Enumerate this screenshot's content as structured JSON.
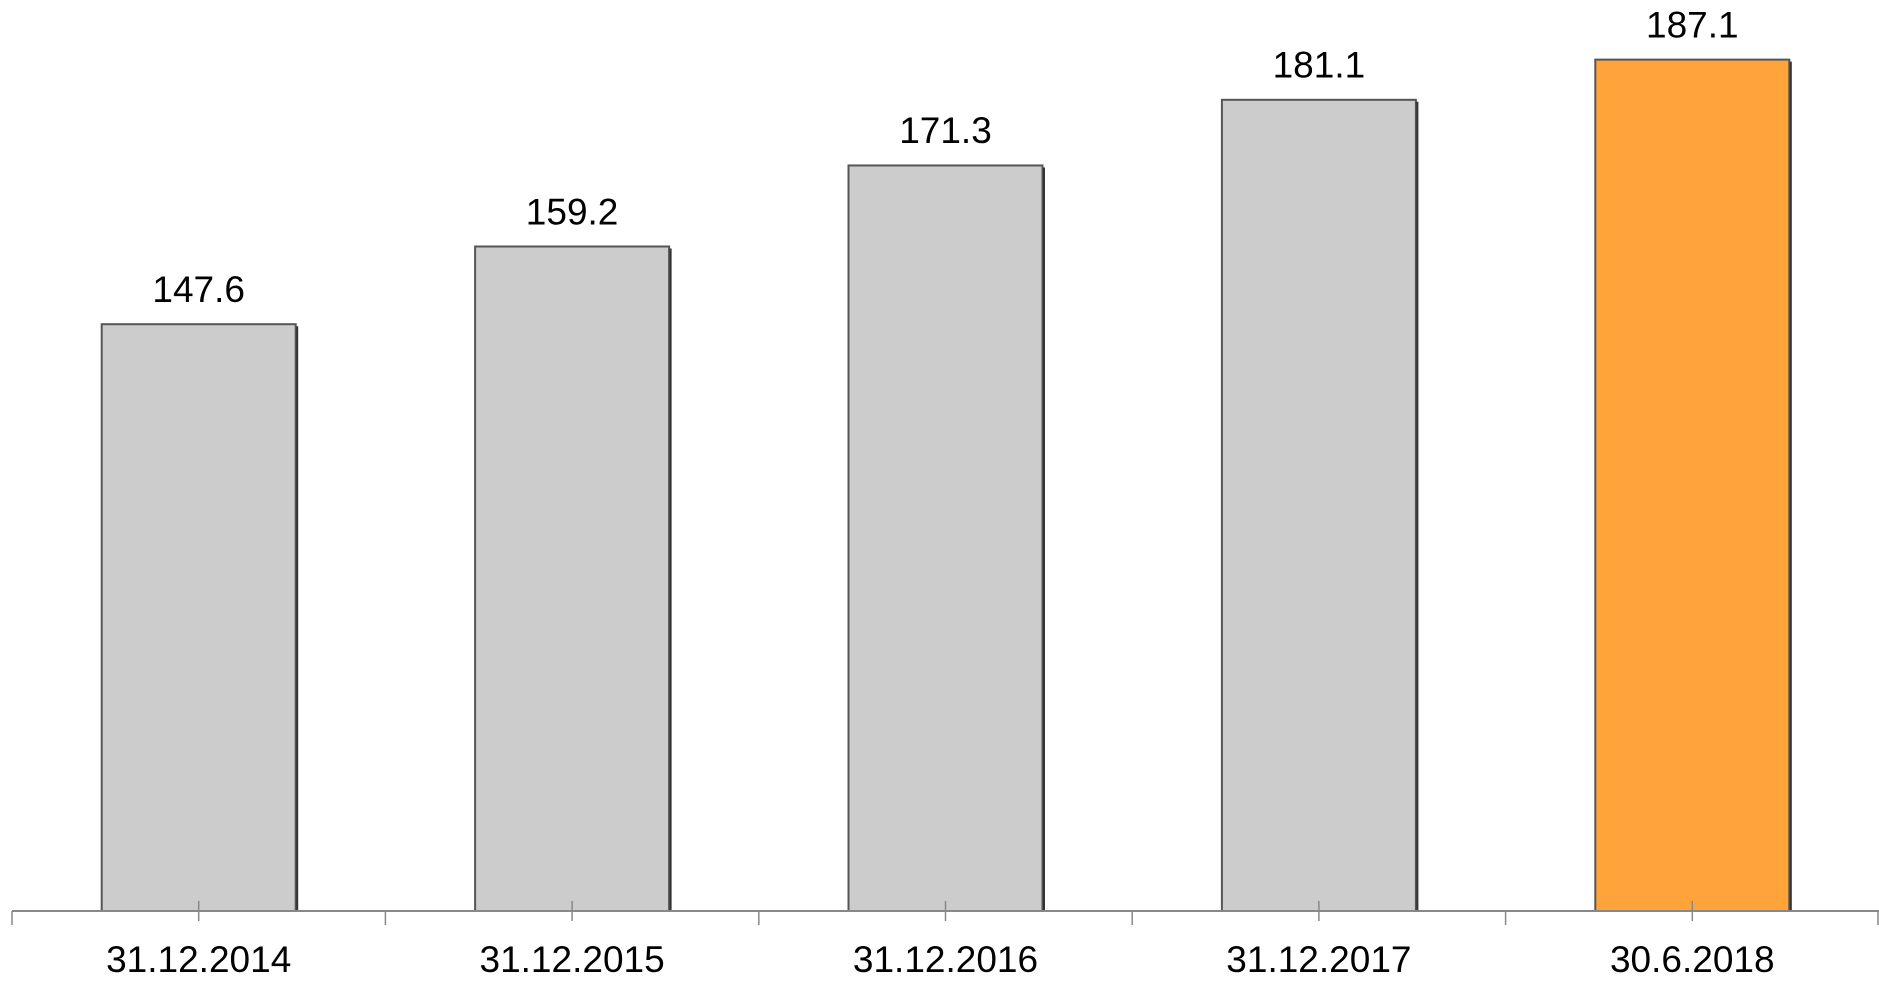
{
  "chart_data": {
    "type": "bar",
    "categories": [
      "31.12.2014",
      "31.12.2015",
      "31.12.2016",
      "31.12.2017",
      "30.6.2018"
    ],
    "values": [
      147.6,
      159.2,
      171.3,
      181.1,
      187.1
    ],
    "colors": [
      "#cccccc",
      "#cccccc",
      "#cccccc",
      "#cccccc",
      "#ffa43a"
    ],
    "ylim": [
      60,
      196
    ]
  }
}
